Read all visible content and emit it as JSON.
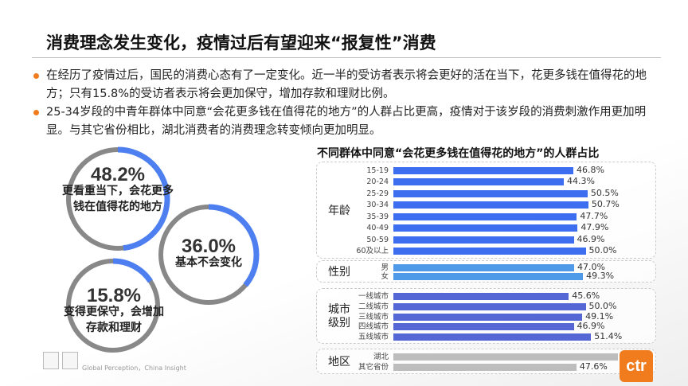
{
  "title": "消费理念发生变化，疫情过后有望迎来“报复性”消费",
  "bullets": [
    "在经历了疫情过后，国民的消费心态有了一定变化。近一半的受访者表示将会更好的活在当下，花更多钱在值得花的地方；只有15.8%的受访者表示将会更加保守，增加存款和理财比例。",
    "25-34岁段的中青年群体中同意“会花更多钱在值得花的地方”的人群占比更高，疫情对于该岁段的消费刺激作用更加明显。与其它省份相比，湖北消费者的消费理念转变倾向更加明显。"
  ],
  "circles": [
    {
      "value": "48.2%",
      "pct": 48.2,
      "label": "更看重当下，会花更多钱在值得花的地方"
    },
    {
      "value": "36.0%",
      "pct": 36.0,
      "label": "基本不会变化"
    },
    {
      "value": "15.8%",
      "pct": 15.8,
      "label": "变得更保守，会增加存款和理财"
    }
  ],
  "source": "Global Perception，China Insight",
  "logo": "ctr",
  "colors": {
    "accent": "#f07c1e",
    "age": "#3d6ef0",
    "gender": "#4f9ae8",
    "city": "#5467d4",
    "region": "#bdbdbd",
    "ring": "#888888",
    "ring_fill": "#4d7ff0"
  },
  "chart_data": {
    "type": "bar",
    "orientation": "horizontal",
    "title": "不同群体中同意“会花更多钱在值得花的地方”的人群占比",
    "unit": "%",
    "groups": [
      {
        "name": "年龄",
        "categories": [
          "15-19",
          "20-24",
          "25-29",
          "30-34",
          "35-39",
          "40-49",
          "50-59",
          "60及以上"
        ],
        "values": [
          46.8,
          44.3,
          50.5,
          50.7,
          47.7,
          47.9,
          46.9,
          50.0
        ],
        "labels": [
          "46.8%",
          "44.3%",
          "50.5%",
          "50.7%",
          "47.7%",
          "47.9%",
          "46.9%",
          "50.0%"
        ]
      },
      {
        "name": "性别",
        "categories": [
          "男",
          "女"
        ],
        "values": [
          47.0,
          49.3
        ],
        "labels": [
          "47.0%",
          "49.3%"
        ]
      },
      {
        "name": "城市级别",
        "categories": [
          "一线城市",
          "二线城市",
          "三线城市",
          "四线城市",
          "五线城市"
        ],
        "values": [
          45.6,
          50.0,
          49.1,
          46.9,
          51.4
        ],
        "labels": [
          "45.6%",
          "50.0%",
          "49.1%",
          "46.9%",
          "51.4%"
        ]
      },
      {
        "name": "地区",
        "categories": [
          "湖北",
          "其它省份"
        ],
        "values": [
          58.4,
          47.6
        ],
        "labels": [
          "58.4%",
          "47.6%"
        ]
      }
    ]
  }
}
